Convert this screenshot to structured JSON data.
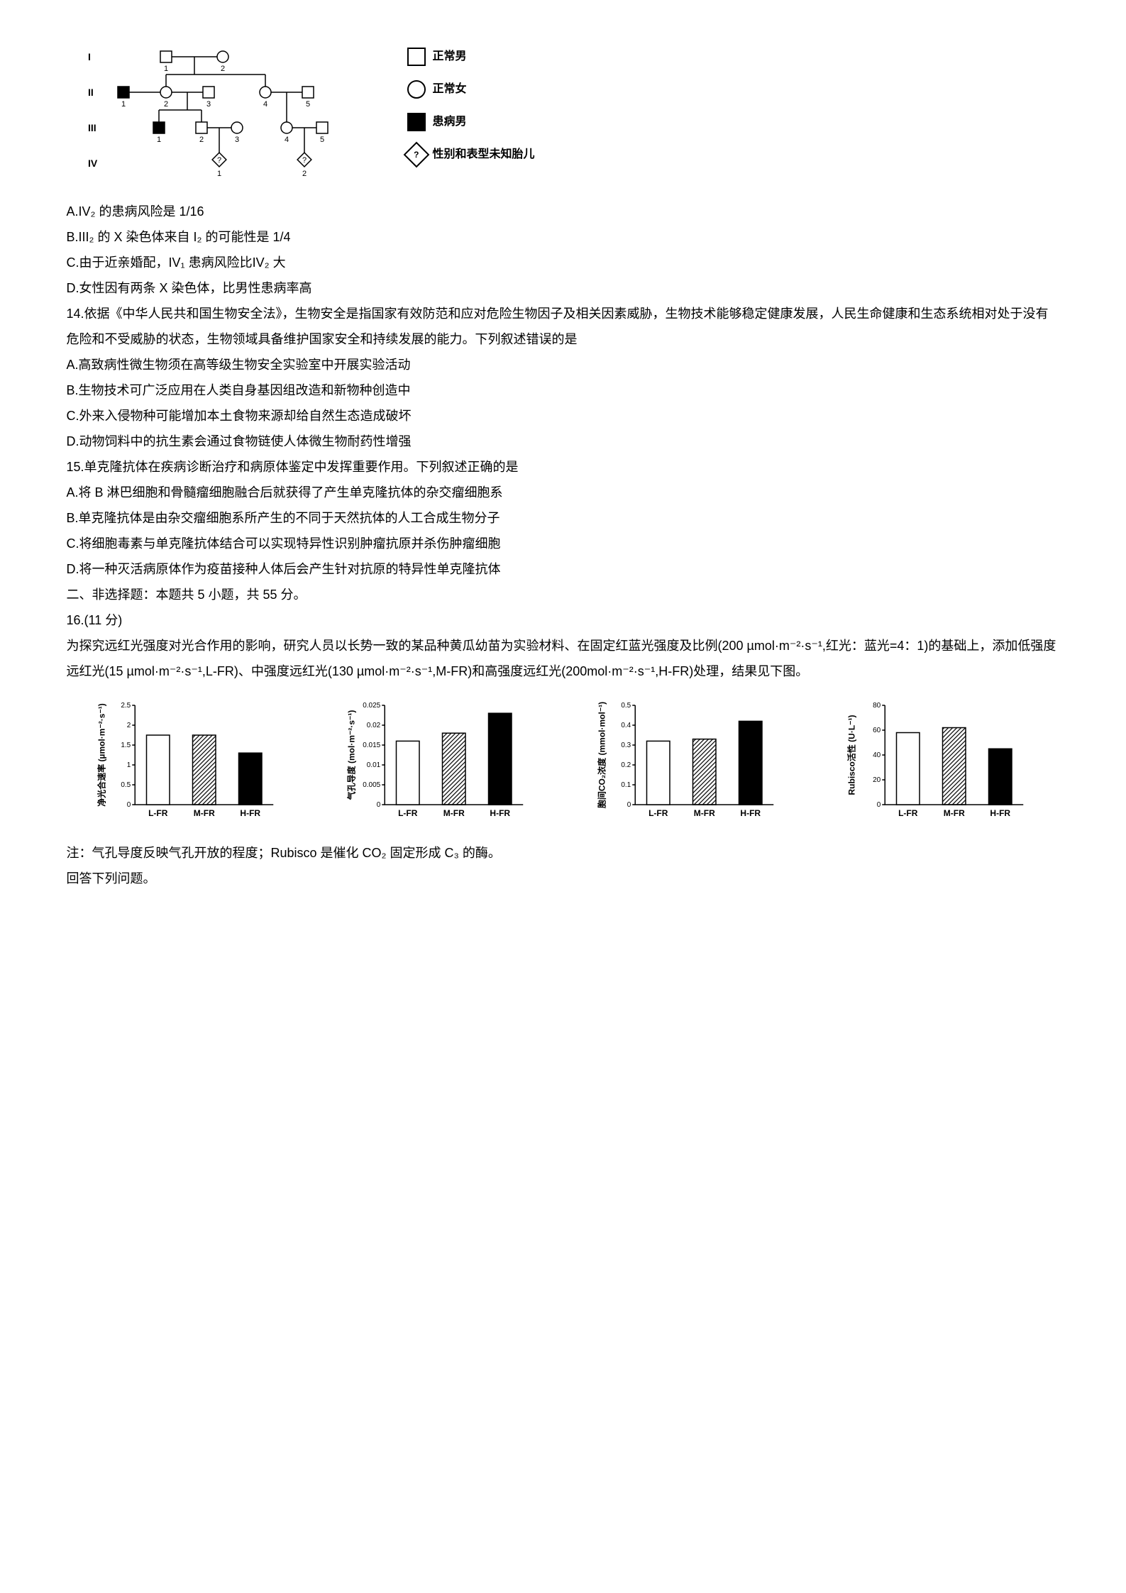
{
  "pedigree": {
    "generations": [
      "I",
      "II",
      "III",
      "IV"
    ],
    "legend": {
      "normal_male": "正常男",
      "normal_female": "正常女",
      "affected_male": "患病男",
      "unknown_fetus": "性别和表型未知胎儿"
    },
    "fetus_mark": "?",
    "nodes": {
      "I": [
        {
          "id": "I1",
          "type": "square",
          "filled": false,
          "x": 120,
          "sub": "1"
        },
        {
          "id": "I2",
          "type": "circle",
          "filled": false,
          "x": 200,
          "sub": "2"
        }
      ],
      "II": [
        {
          "id": "II1",
          "type": "square",
          "filled": true,
          "x": 60,
          "sub": "1"
        },
        {
          "id": "II2",
          "type": "circle",
          "filled": false,
          "x": 120,
          "sub": "2"
        },
        {
          "id": "II3",
          "type": "square",
          "filled": false,
          "x": 180,
          "sub": "3"
        },
        {
          "id": "II4",
          "type": "circle",
          "filled": false,
          "x": 260,
          "sub": "4"
        },
        {
          "id": "II5",
          "type": "square",
          "filled": false,
          "x": 320,
          "sub": "5"
        }
      ],
      "III": [
        {
          "id": "III1",
          "type": "square",
          "filled": true,
          "x": 110,
          "sub": "1"
        },
        {
          "id": "III2",
          "type": "square",
          "filled": false,
          "x": 170,
          "sub": "2"
        },
        {
          "id": "III3",
          "type": "circle",
          "filled": false,
          "x": 220,
          "sub": "3"
        },
        {
          "id": "III4",
          "type": "circle",
          "filled": false,
          "x": 290,
          "sub": "4"
        },
        {
          "id": "III5",
          "type": "square",
          "filled": false,
          "x": 340,
          "sub": "5"
        }
      ],
      "IV": [
        {
          "id": "IV1",
          "type": "diamond",
          "filled": false,
          "x": 195,
          "sub": "1"
        },
        {
          "id": "IV2",
          "type": "diamond",
          "filled": false,
          "x": 315,
          "sub": "2"
        }
      ]
    }
  },
  "options_q13": {
    "A": "A.IV₂ 的患病风险是 1/16",
    "B": "B.III₂ 的 X 染色体来自 I₂ 的可能性是 1/4",
    "C": "C.由于近亲婚配，IV₁ 患病风险比IV₂ 大",
    "D": "D.女性因有两条 X 染色体，比男性患病率高"
  },
  "q14": {
    "stem": "14.依据《中华人民共和国生物安全法》，生物安全是指国家有效防范和应对危险生物因子及相关因素威胁，生物技术能够稳定健康发展，人民生命健康和生态系统相对处于没有危险和不受威胁的状态，生物领域具备维护国家安全和持续发展的能力。下列叙述错误的是",
    "A": "A.高致病性微生物须在高等级生物安全实验室中开展实验活动",
    "B": "B.生物技术可广泛应用在人类自身基因组改造和新物种创造中",
    "C": "C.外来入侵物种可能增加本土食物来源却给自然生态造成破坏",
    "D": "D.动物饲料中的抗生素会通过食物链使人体微生物耐药性增强"
  },
  "q15": {
    "stem": "15.单克隆抗体在疾病诊断治疗和病原体鉴定中发挥重要作用。下列叙述正确的是",
    "A": "A.将 B 淋巴细胞和骨髓瘤细胞融合后就获得了产生单克隆抗体的杂交瘤细胞系",
    "B": "B.单克隆抗体是由杂交瘤细胞系所产生的不同于天然抗体的人工合成生物分子",
    "C": "C.将细胞毒素与单克隆抗体结合可以实现特异性识别肿瘤抗原并杀伤肿瘤细胞",
    "D": "D.将一种灭活病原体作为疫苗接种人体后会产生针对抗原的特异性单克隆抗体"
  },
  "section2": {
    "heading": "二、非选择题：本题共 5 小题，共 55 分。",
    "q16_label": "16.(11 分)",
    "q16_text": "为探究远红光强度对光合作用的影响，研究人员以长势一致的某品种黄瓜幼苗为实验材料、在固定红蓝光强度及比例(200 µmol·m⁻²·s⁻¹,红光：蓝光=4：1)的基础上，添加低强度远红光(15 µmol·m⁻²·s⁻¹,L-FR)、中强度远红光(130 µmol·m⁻²·s⁻¹,M-FR)和高强度远红光(200mol·m⁻²·s⁻¹,H-FR)处理，结果见下图。",
    "note": "注：气孔导度反映气孔开放的程度；Rubisco 是催化 CO₂ 固定形成 C₃ 的酶。",
    "answer_prompt": "回答下列问题。"
  },
  "charts": {
    "xlabels": [
      "L-FR",
      "M-FR",
      "H-FR"
    ],
    "bar_styles": [
      "white",
      "hatch",
      "black"
    ],
    "chart1": {
      "ylabel": "净光合速率 (µmol·m⁻²·s⁻¹)",
      "ylim": [
        0,
        2.5
      ],
      "yticks": [
        0,
        0.5,
        1,
        1.5,
        2,
        2.5
      ],
      "values": [
        1.75,
        1.75,
        1.3
      ]
    },
    "chart2": {
      "ylabel": "气孔导度 (mol·m⁻²·s⁻¹)",
      "ylim": [
        0,
        0.025
      ],
      "yticks": [
        0,
        0.005,
        0.01,
        0.015,
        0.02,
        0.025
      ],
      "values": [
        0.016,
        0.018,
        0.023
      ]
    },
    "chart3": {
      "ylabel": "胞间CO₂浓度 (mmol·mol⁻¹)",
      "ylim": [
        0,
        0.5
      ],
      "yticks": [
        0,
        0.1,
        0.2,
        0.3,
        0.4,
        0.5
      ],
      "values": [
        0.32,
        0.33,
        0.42
      ]
    },
    "chart4": {
      "ylabel": "Rubisco活性 (U·L⁻¹)",
      "ylim": [
        0,
        80
      ],
      "yticks": [
        0,
        20,
        40,
        60,
        80
      ],
      "values": [
        58,
        62,
        45
      ]
    },
    "colors": {
      "bg": "#ffffff",
      "axis": "#000000",
      "bar_white": "#ffffff",
      "bar_black": "#000000",
      "hatch_stroke": "#000000"
    },
    "bar_width": 0.25
  }
}
